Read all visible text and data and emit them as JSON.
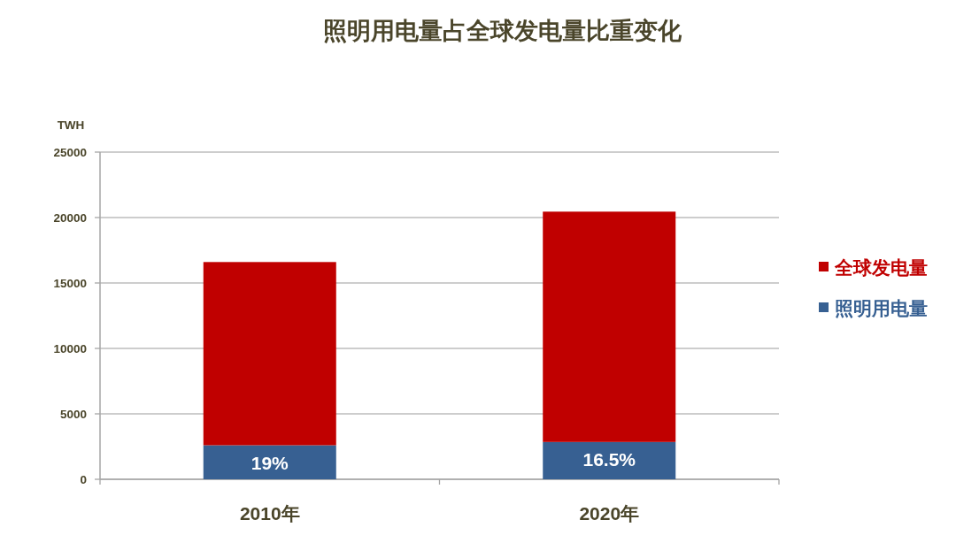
{
  "chart_data": {
    "type": "bar",
    "title": "照明用电量占全球发电量比重变化",
    "ylabel": "TWH",
    "categories": [
      "2010年",
      "2020年"
    ],
    "stacked": true,
    "series": [
      {
        "name": "照明用电量",
        "color": "#376092",
        "values": [
          2600,
          2850
        ]
      },
      {
        "name": "全球发电量",
        "color": "#c00000",
        "values": [
          14000,
          17600
        ]
      }
    ],
    "annotations": [
      {
        "text": "19%",
        "x": "2010年",
        "y": 2600
      },
      {
        "text": "16.5%",
        "x": "2020年",
        "y": 2850
      }
    ],
    "ylim": [
      0,
      25000
    ],
    "yticks": [
      0,
      5000,
      10000,
      15000,
      20000,
      25000
    ],
    "grid": "y",
    "legend": "right"
  }
}
